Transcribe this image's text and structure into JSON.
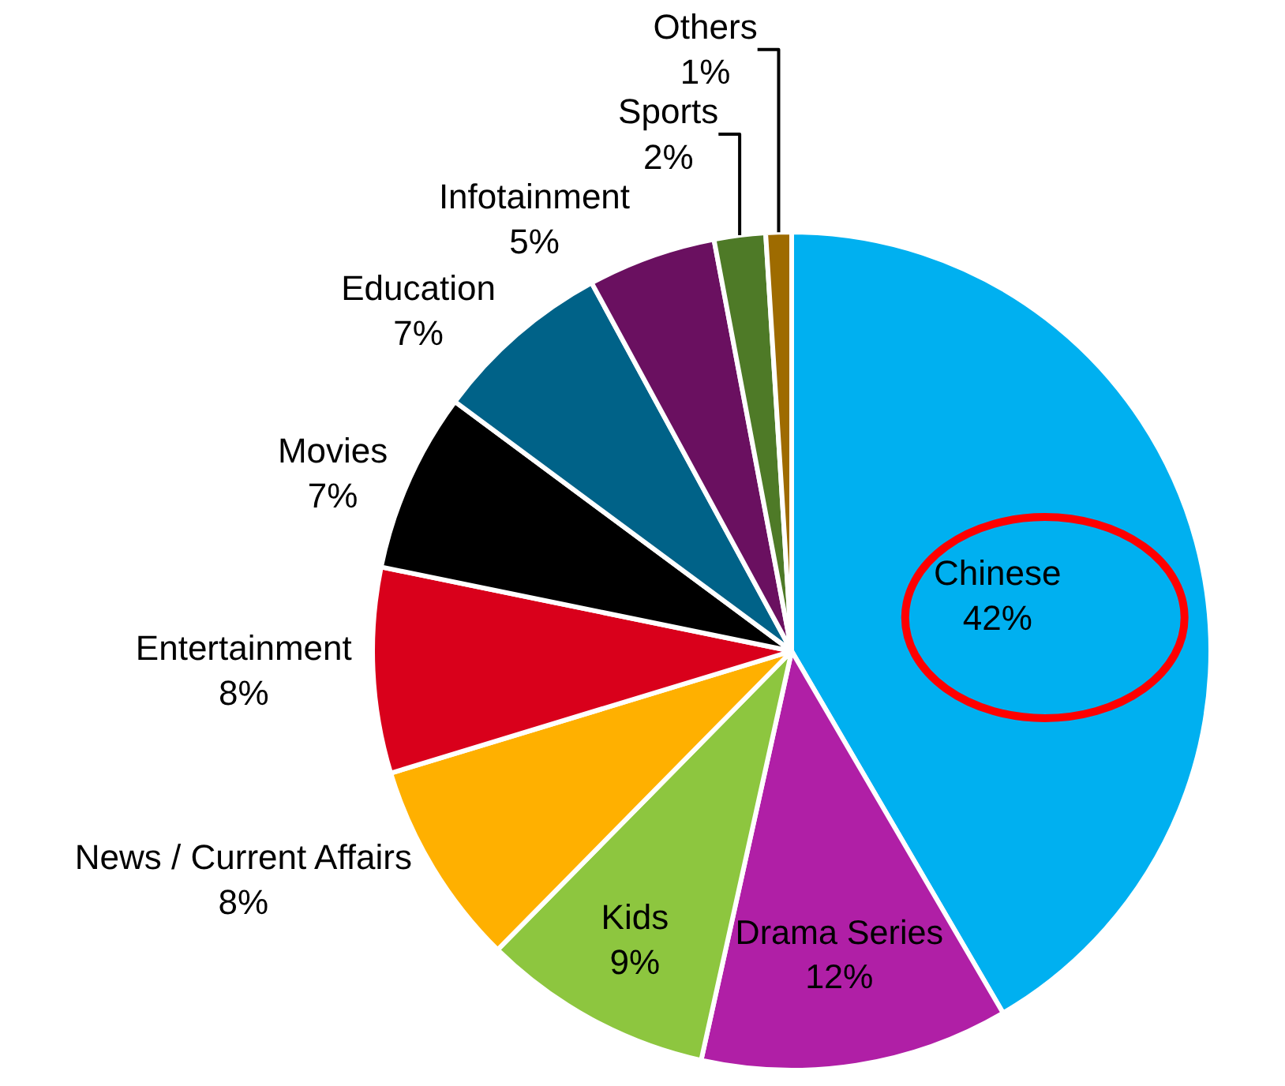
{
  "chart_data": {
    "type": "pie",
    "categories": [
      "Chinese",
      "Drama Series",
      "Kids",
      "News / Current Affairs",
      "Entertainment",
      "Movies",
      "Education",
      "Infotainment",
      "Sports",
      "Others"
    ],
    "values": [
      42,
      12,
      9,
      8,
      8,
      7,
      7,
      5,
      2,
      1
    ],
    "value_labels": [
      "42%",
      "12%",
      "9%",
      "8%",
      "8%",
      "7%",
      "7%",
      "5%",
      "2%",
      "1%"
    ],
    "colors": [
      "#00b0f0",
      "#b01fa6",
      "#8dc63f",
      "#ffb000",
      "#d9001b",
      "#000000",
      "#006288",
      "#6a1060",
      "#4e7a27",
      "#9e6b00"
    ]
  }
}
